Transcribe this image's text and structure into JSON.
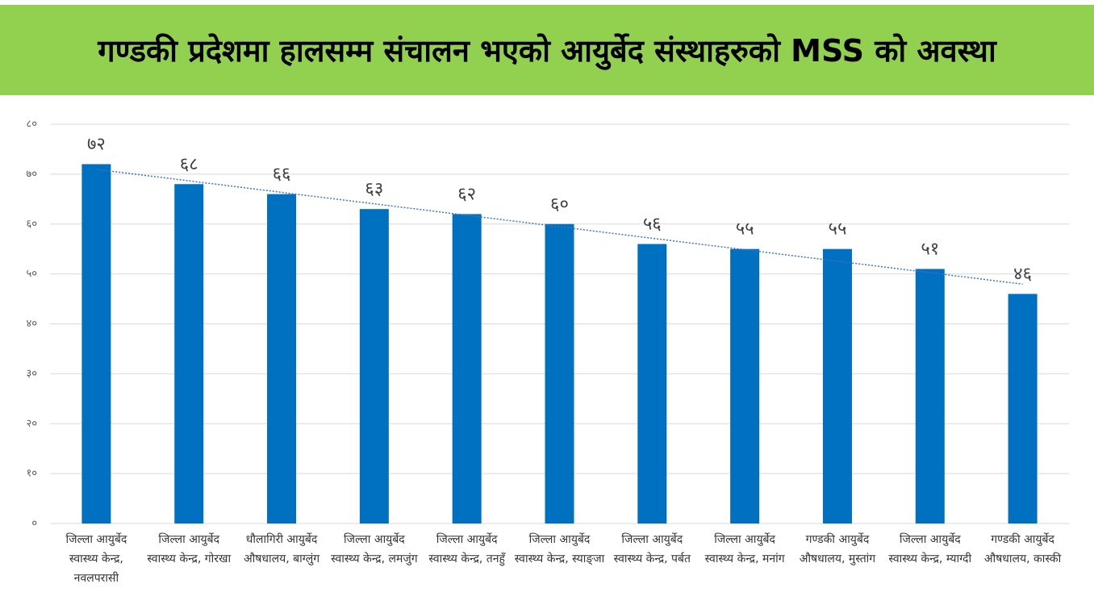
{
  "chart_data": {
    "type": "bar",
    "title": "गण्डकी प्रदेशमा हालसम्म संचालन भएको आयुर्बेद संस्थाहरुको MSS को अवस्था",
    "categories": [
      "जिल्ला आयुर्बेद स्वास्थ्य केन्द्र, नवलपरासी",
      "जिल्ला आयुर्बेद स्वास्थ्य केन्द्र, गोरखा",
      "धौलागिरी आयुर्बेद औषधालय, बाग्लुंग",
      "जिल्ला आयुर्बेद स्वास्थ्य केन्द्र, लमजुंग",
      "जिल्ला आयुर्बेद स्वास्थ्य केन्द्र, तनहुँ",
      "जिल्ला आयुर्बेद स्वास्थ्य केन्द्र, स्याङ्जा",
      "जिल्ला आयुर्बेद स्वास्थ्य केन्द्र, पर्बत",
      "जिल्ला आयुर्बेद स्वास्थ्य केन्द्र, मनांग",
      "गण्डकी आयुर्बेद औषधालय, मुस्तांग",
      "जिल्ला आयुर्बेद स्वास्थ्य केन्द्र, म्याग्दी",
      "गण्डकी आयुर्बेद औषधालय, कास्की"
    ],
    "values": [
      72,
      68,
      66,
      63,
      62,
      60,
      56,
      55,
      55,
      51,
      46
    ],
    "value_labels": [
      "७२",
      "६८",
      "६६",
      "६३",
      "६२",
      "६०",
      "५६",
      "५५",
      "५५",
      "५१",
      "४६"
    ],
    "color": "#0070c0",
    "ylim": [
      0,
      80
    ],
    "yticks": [
      {
        "value": 0,
        "label": "०"
      },
      {
        "value": 10,
        "label": "१०"
      },
      {
        "value": 20,
        "label": "२०"
      },
      {
        "value": 30,
        "label": "३०"
      },
      {
        "value": 40,
        "label": "४०"
      },
      {
        "value": 50,
        "label": "५०"
      },
      {
        "value": 60,
        "label": "६०"
      },
      {
        "value": 70,
        "label": "७०"
      },
      {
        "value": 80,
        "label": "८०"
      }
    ],
    "grid": true,
    "trendline": true
  }
}
